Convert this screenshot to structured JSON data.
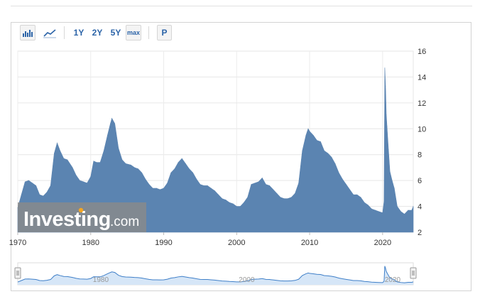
{
  "toolbar": {
    "bar_chart_icon": "bar-chart-icon",
    "line_chart_icon": "line-chart-icon",
    "range_1y": "1Y",
    "range_2y": "2Y",
    "range_5y": "5Y",
    "range_max": "max",
    "print_label": "P"
  },
  "watermark": {
    "brand": "Investing",
    "suffix": ".com"
  },
  "colors": {
    "area_fill": "#5b84b1",
    "navigator_fill": "#d6e6f7",
    "navigator_line": "#3f7fc8",
    "accent": "#2c64a8"
  },
  "navigator": {
    "tick_labels": [
      "1980",
      "2000",
      "2020"
    ]
  },
  "chart_data": {
    "type": "area",
    "title": "",
    "xlabel": "",
    "ylabel": "",
    "xlim": [
      1970,
      2024.2
    ],
    "ylim": [
      2,
      16
    ],
    "y_ticks": [
      2,
      4,
      6,
      8,
      10,
      12,
      14,
      16
    ],
    "x_ticks": [
      1970,
      1980,
      1990,
      2000,
      2010,
      2020
    ],
    "grid": true,
    "y_axis_side": "right",
    "series": [
      {
        "x": [
          1970.0,
          1970.5,
          1971.0,
          1971.5,
          1972.0,
          1972.5,
          1973.0,
          1973.5,
          1974.0,
          1974.5,
          1975.0,
          1975.4,
          1975.8,
          1976.3,
          1976.8,
          1977.5,
          1978.0,
          1978.5,
          1979.0,
          1979.5,
          1980.0,
          1980.4,
          1980.8,
          1981.3,
          1981.8,
          1982.3,
          1982.7,
          1982.9,
          1983.3,
          1983.8,
          1984.3,
          1984.8,
          1985.5,
          1986.0,
          1986.5,
          1987.0,
          1987.5,
          1988.0,
          1988.5,
          1989.0,
          1989.5,
          1990.0,
          1990.5,
          1991.0,
          1991.5,
          1992.0,
          1992.5,
          1993.0,
          1993.5,
          1994.0,
          1994.5,
          1995.0,
          1995.5,
          1996.0,
          1996.5,
          1997.0,
          1997.5,
          1998.0,
          1998.5,
          1999.0,
          1999.5,
          2000.0,
          2000.5,
          2001.0,
          2001.5,
          2002.0,
          2002.5,
          2003.0,
          2003.5,
          2004.0,
          2004.5,
          2005.0,
          2005.5,
          2006.0,
          2006.5,
          2007.0,
          2007.5,
          2008.0,
          2008.5,
          2009.0,
          2009.5,
          2009.8,
          2010.0,
          2010.5,
          2011.0,
          2011.5,
          2012.0,
          2012.5,
          2013.0,
          2013.5,
          2014.0,
          2014.5,
          2015.0,
          2015.5,
          2016.0,
          2016.5,
          2017.0,
          2017.5,
          2018.0,
          2018.5,
          2019.0,
          2019.5,
          2020.0,
          2020.2,
          2020.3,
          2020.4,
          2020.5,
          2020.6,
          2020.8,
          2021.0,
          2021.3,
          2021.6,
          2022.0,
          2022.5,
          2023.0,
          2023.5,
          2024.0,
          2024.2
        ],
        "values": [
          3.9,
          4.9,
          5.9,
          6.0,
          5.8,
          5.6,
          4.9,
          4.8,
          5.1,
          5.6,
          8.1,
          8.9,
          8.3,
          7.7,
          7.6,
          7.0,
          6.4,
          6.0,
          5.9,
          5.8,
          6.3,
          7.5,
          7.4,
          7.4,
          8.3,
          9.5,
          10.4,
          10.8,
          10.4,
          8.5,
          7.6,
          7.3,
          7.2,
          7.0,
          6.9,
          6.6,
          6.1,
          5.7,
          5.4,
          5.4,
          5.3,
          5.4,
          5.8,
          6.6,
          6.9,
          7.4,
          7.7,
          7.3,
          6.9,
          6.6,
          6.1,
          5.7,
          5.6,
          5.6,
          5.4,
          5.2,
          4.9,
          4.6,
          4.5,
          4.3,
          4.2,
          4.0,
          4.0,
          4.3,
          4.7,
          5.7,
          5.8,
          5.9,
          6.2,
          5.7,
          5.6,
          5.3,
          5.0,
          4.7,
          4.6,
          4.6,
          4.7,
          5.0,
          5.8,
          8.3,
          9.5,
          10.0,
          9.8,
          9.5,
          9.1,
          9.0,
          8.3,
          8.1,
          7.8,
          7.3,
          6.6,
          6.1,
          5.7,
          5.3,
          4.9,
          4.9,
          4.7,
          4.3,
          4.1,
          3.8,
          3.7,
          3.6,
          3.5,
          4.4,
          14.7,
          13.3,
          11.1,
          10.2,
          8.4,
          6.7,
          6.0,
          5.4,
          4.0,
          3.6,
          3.4,
          3.7,
          3.7,
          4.0
        ]
      }
    ]
  }
}
